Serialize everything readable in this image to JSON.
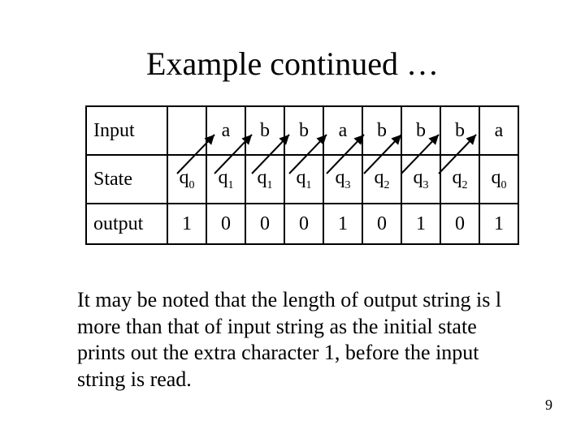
{
  "title": "Example continued …",
  "table": {
    "labels": {
      "input": "Input",
      "state": "State",
      "output": "output"
    },
    "input": [
      "a",
      "b",
      "b",
      "a",
      "b",
      "b",
      "b",
      "a"
    ],
    "state": [
      "q0",
      "q1",
      "q1",
      "q1",
      "q3",
      "q2",
      "q3",
      "q2",
      "q0"
    ],
    "output": [
      "1",
      "0",
      "0",
      "0",
      "1",
      "0",
      "1",
      "0",
      "1"
    ]
  },
  "arrows": {
    "color": "#000000",
    "stroke_width": 2,
    "pairs": 8
  },
  "note": "It may be noted that the length of output string is l more than that of input string as the initial state prints out the extra character 1, before the input string is read.",
  "page_number": "9",
  "layout": {
    "col_label_w": 90,
    "col_data_w": 46,
    "row_input_h": 60,
    "row_state_h": 60,
    "row_output_h": 50
  }
}
